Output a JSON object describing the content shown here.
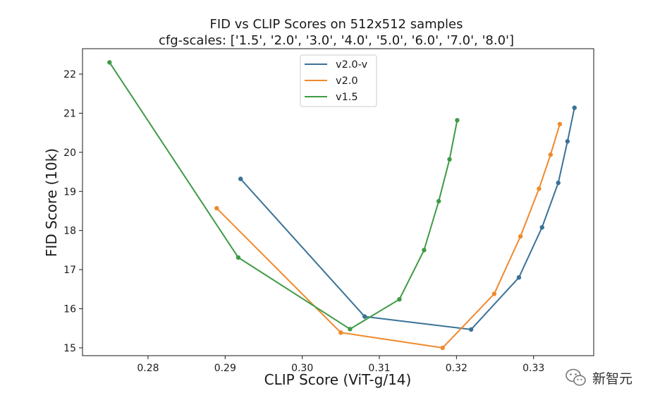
{
  "chart_data": {
    "type": "line",
    "title": "FID vs CLIP Scores on 512x512 samples",
    "subtitle": "cfg-scales: ['1.5', '2.0', '3.0', '4.0', '5.0', '6.0', '7.0', '8.0']",
    "xlabel": "CLIP Score (ViT-g/14)",
    "ylabel": "FID Score (10k)",
    "xlim": [
      0.2715,
      0.3378
    ],
    "ylim": [
      14.8,
      22.65
    ],
    "xticks": [
      0.28,
      0.29,
      0.3,
      0.31,
      0.32,
      0.33
    ],
    "xtick_labels": [
      "0.28",
      "0.29",
      "0.30",
      "0.31",
      "0.32",
      "0.33"
    ],
    "yticks": [
      15,
      16,
      17,
      18,
      19,
      20,
      21,
      22
    ],
    "ytick_labels": [
      "15",
      "16",
      "17",
      "18",
      "19",
      "20",
      "21",
      "22"
    ],
    "grid": false,
    "legend_position": "top-center",
    "series": [
      {
        "name": "v2.0-v",
        "color": "#3a7296",
        "points": [
          {
            "x": 0.292,
            "y": 19.32
          },
          {
            "x": 0.3081,
            "y": 15.8
          },
          {
            "x": 0.3219,
            "y": 15.47
          },
          {
            "x": 0.3281,
            "y": 16.8
          },
          {
            "x": 0.3311,
            "y": 18.08
          },
          {
            "x": 0.3332,
            "y": 19.22
          },
          {
            "x": 0.3344,
            "y": 20.28
          },
          {
            "x": 0.3353,
            "y": 21.14
          }
        ]
      },
      {
        "name": "v2.0",
        "color": "#f0892c",
        "points": [
          {
            "x": 0.2889,
            "y": 18.57
          },
          {
            "x": 0.305,
            "y": 15.39
          },
          {
            "x": 0.3182,
            "y": 15.0
          },
          {
            "x": 0.3249,
            "y": 16.38
          },
          {
            "x": 0.3283,
            "y": 17.85
          },
          {
            "x": 0.3307,
            "y": 19.07
          },
          {
            "x": 0.3322,
            "y": 19.94
          },
          {
            "x": 0.3334,
            "y": 20.72
          }
        ]
      },
      {
        "name": "v1.5",
        "color": "#3e9a45",
        "points": [
          {
            "x": 0.275,
            "y": 22.3
          },
          {
            "x": 0.2917,
            "y": 17.31
          },
          {
            "x": 0.3062,
            "y": 15.48
          },
          {
            "x": 0.3126,
            "y": 16.24
          },
          {
            "x": 0.3158,
            "y": 17.5
          },
          {
            "x": 0.3177,
            "y": 18.75
          },
          {
            "x": 0.3191,
            "y": 19.82
          },
          {
            "x": 0.3201,
            "y": 20.82
          }
        ]
      }
    ]
  },
  "watermark": {
    "text": "新智元",
    "icon": "wechat-icon"
  }
}
